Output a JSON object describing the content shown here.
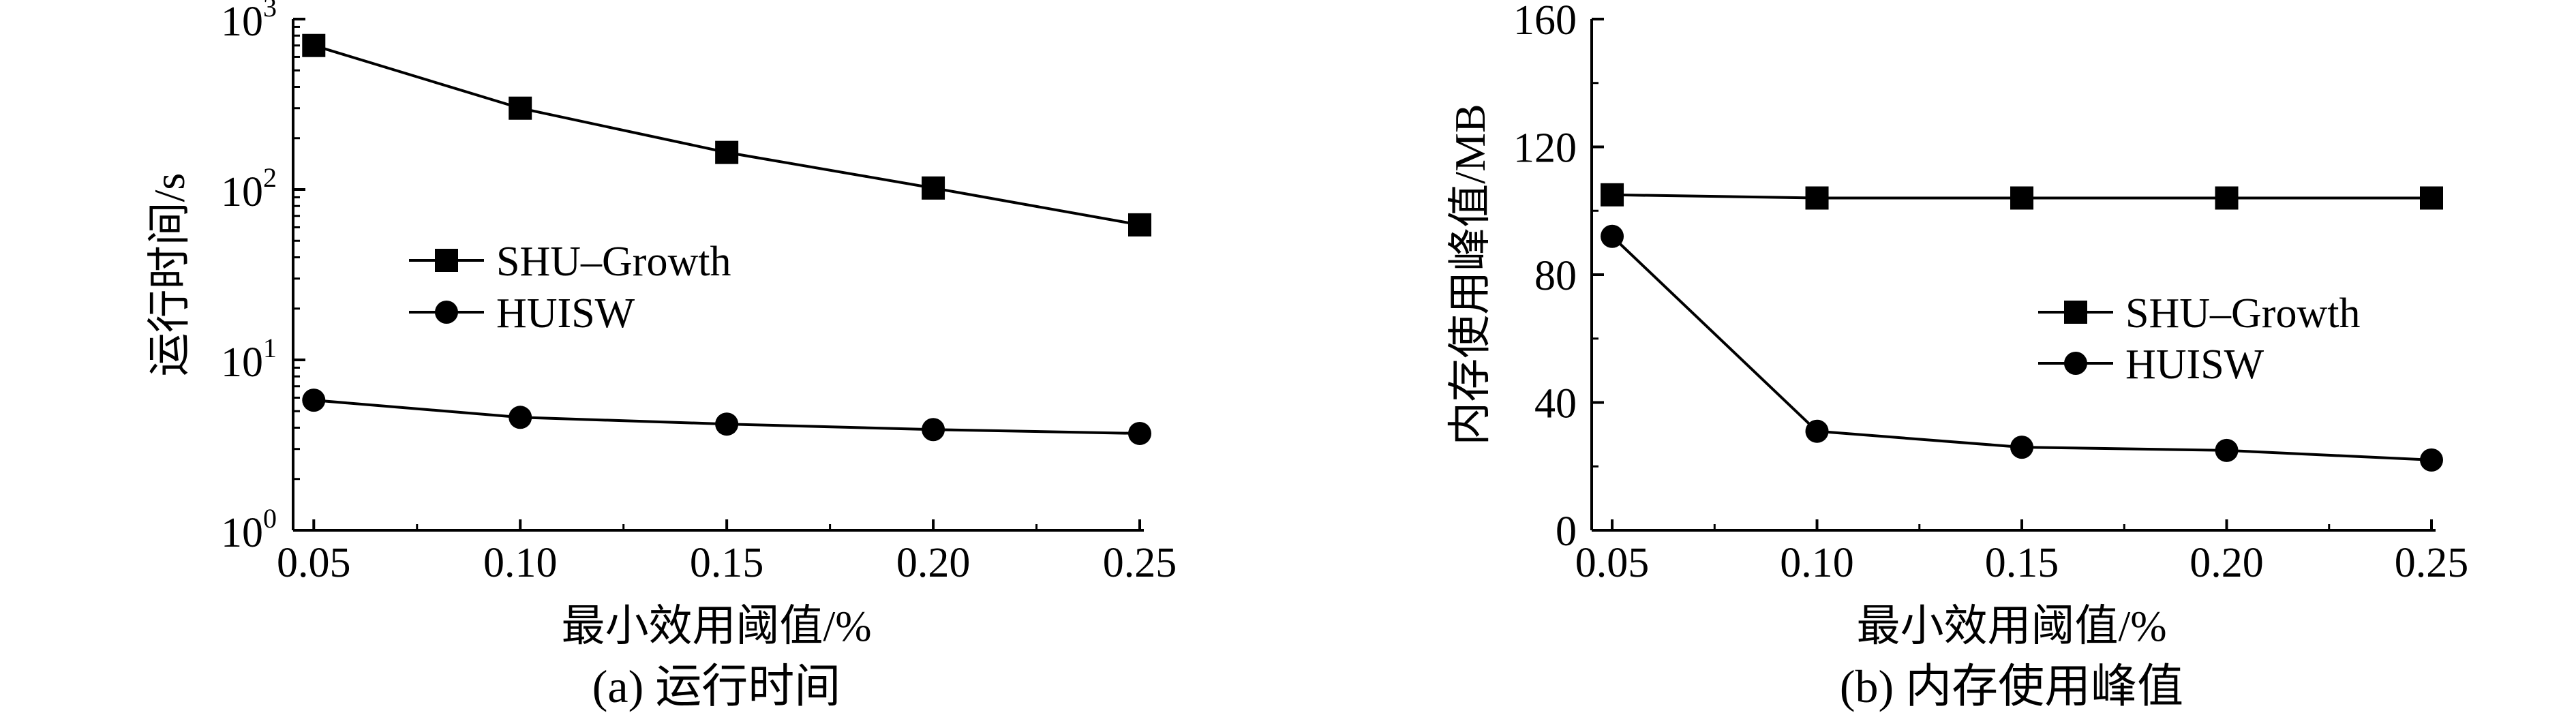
{
  "chart_data": [
    {
      "type": "line",
      "caption": "(a) 运行时间",
      "xlabel": "最小效用阈值/%",
      "ylabel": "运行时间/s",
      "y_scale": "log",
      "ylim": [
        1,
        1000
      ],
      "x": [
        0.05,
        0.1,
        0.15,
        0.2,
        0.25
      ],
      "x_tick_labels": [
        "0.05",
        "0.10",
        "0.15",
        "0.20",
        "0.25"
      ],
      "y_ticks": [
        {
          "value": 1,
          "base": "10",
          "exp": "0"
        },
        {
          "value": 10,
          "base": "10",
          "exp": "1"
        },
        {
          "value": 100,
          "base": "10",
          "exp": "2"
        },
        {
          "value": 1000,
          "base": "10",
          "exp": "3"
        }
      ],
      "legend_position": "center-left",
      "series": [
        {
          "name": "SHU–Growth",
          "marker": "square",
          "values": [
            700,
            300,
            165,
            102,
            62
          ]
        },
        {
          "name": "HUISW",
          "marker": "circle",
          "values": [
            5.8,
            4.6,
            4.2,
            3.9,
            3.7
          ]
        }
      ]
    },
    {
      "type": "line",
      "caption": "(b) 内存使用峰值",
      "xlabel": "最小效用阈值/%",
      "ylabel": "内存使用峰值/MB",
      "y_scale": "linear",
      "ylim": [
        0,
        160
      ],
      "x": [
        0.05,
        0.1,
        0.15,
        0.2,
        0.25
      ],
      "x_tick_labels": [
        "0.05",
        "0.10",
        "0.15",
        "0.20",
        "0.25"
      ],
      "y_tick_labels": [
        "0",
        "40",
        "80",
        "120",
        "160"
      ],
      "legend_position": "center-right",
      "series": [
        {
          "name": "SHU–Growth",
          "marker": "square",
          "values": [
            105,
            104,
            104,
            104,
            104
          ]
        },
        {
          "name": "HUISW",
          "marker": "circle",
          "values": [
            92,
            31,
            26,
            25,
            22
          ]
        }
      ]
    }
  ]
}
